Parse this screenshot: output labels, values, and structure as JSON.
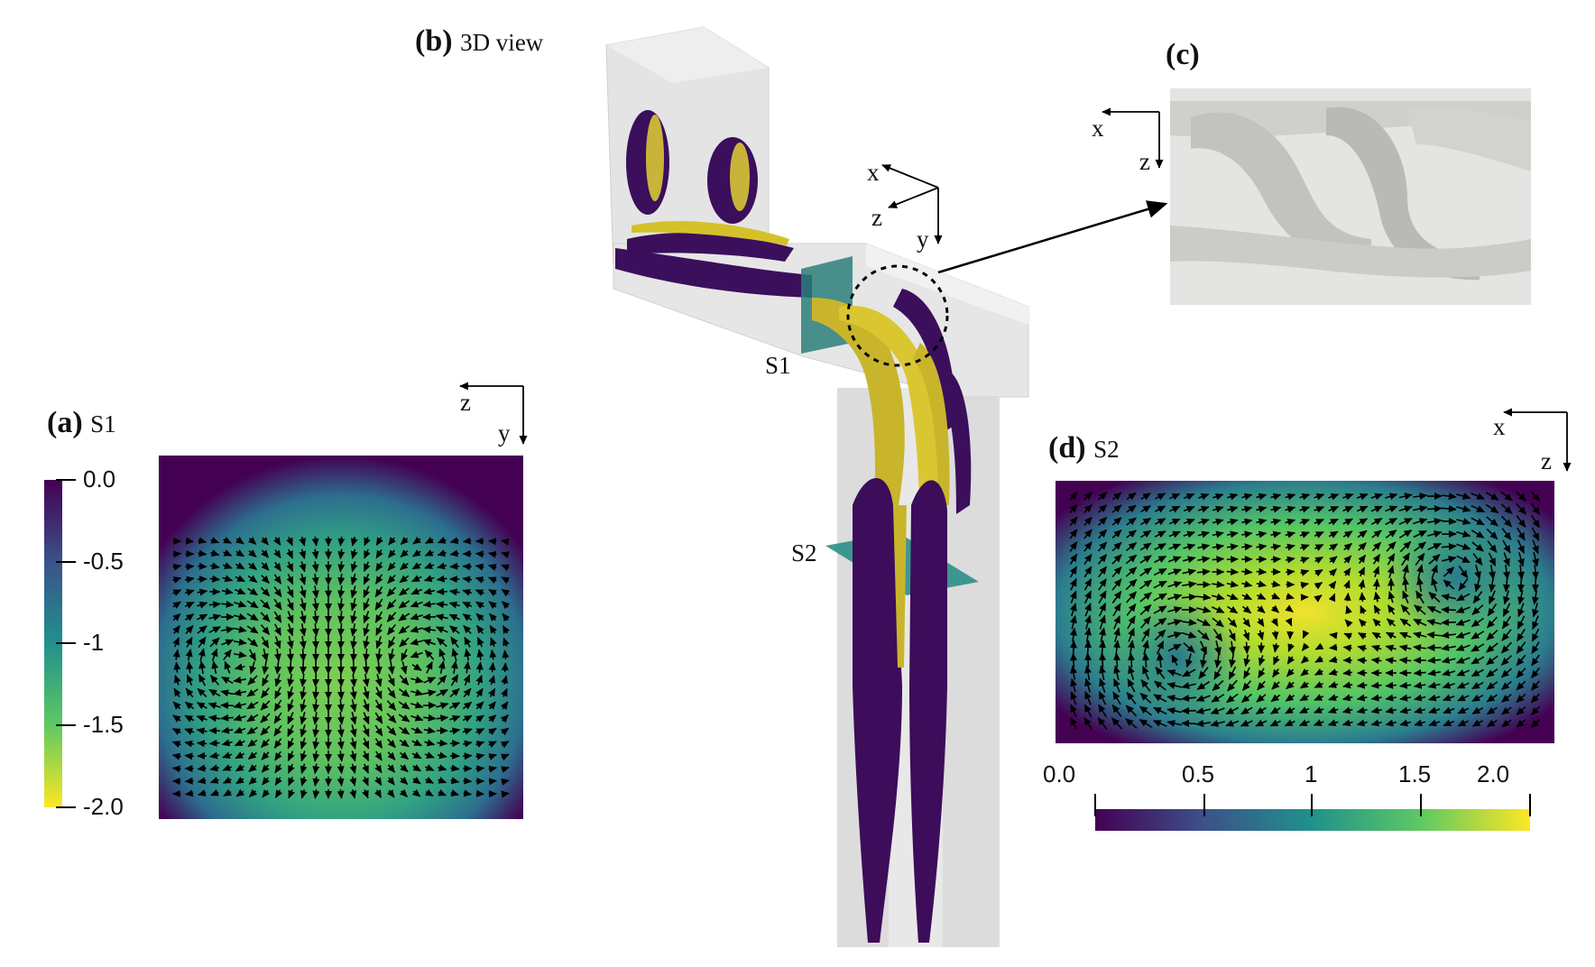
{
  "figure": {
    "panel_a": {
      "letter": "(a)",
      "caption": "S1",
      "axes": {
        "horizontal": "z",
        "vertical": "y"
      },
      "colorbar": {
        "ticks": [
          "0.0",
          "-0.5",
          "-1",
          "-1.5",
          "-2.0"
        ],
        "range": [
          -2.0,
          0.0
        ],
        "orientation": "vertical"
      }
    },
    "panel_b": {
      "letter": "(b)",
      "caption": "3D view",
      "axes": {
        "a": "x",
        "b": "z",
        "c": "y"
      },
      "sections": [
        "S1",
        "S2"
      ]
    },
    "panel_c": {
      "letter": "(c)",
      "axes": {
        "horizontal": "x",
        "vertical": "z"
      }
    },
    "panel_d": {
      "letter": "(d)",
      "caption": "S2",
      "axes": {
        "horizontal": "x",
        "vertical": "z"
      },
      "colorbar": {
        "ticks": [
          "0.0",
          "0.5",
          "1",
          "1.5",
          "2.0"
        ],
        "range": [
          0.0,
          2.2
        ],
        "orientation": "horizontal"
      }
    },
    "colors": {
      "viridis_dark": "#440154",
      "viridis_teal": "#21918c",
      "viridis_yellow": "#fde725",
      "channel_gray": "#dcdcdc",
      "arrow": "#000000"
    }
  }
}
